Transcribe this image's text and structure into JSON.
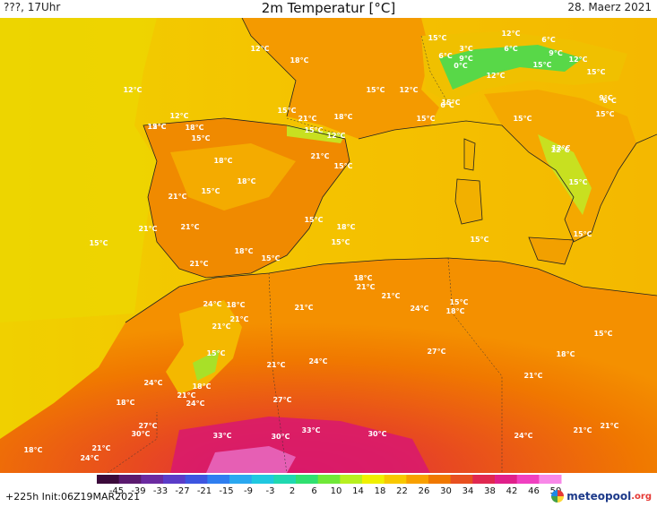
{
  "header": {
    "left": "???, 17Uhr",
    "title": "2m Temperatur [°C]",
    "date": "28. Maerz 2021"
  },
  "footer": {
    "run": "+225h  Init:06Z19MAR2021",
    "logo_main": "meteopool",
    "logo_tld": ".org"
  },
  "colorbar": {
    "ticks": [
      "-45",
      "-39",
      "-33",
      "-27",
      "-21",
      "-15",
      "-9",
      "-3",
      "2",
      "6",
      "10",
      "14",
      "18",
      "22",
      "26",
      "30",
      "34",
      "38",
      "42",
      "46",
      "50"
    ],
    "colors": [
      "#3b0a3a",
      "#5b1a6e",
      "#6b2aa0",
      "#5a3cc8",
      "#3d55e0",
      "#2f7ef0",
      "#2aa8f0",
      "#20c8e0",
      "#20d8b0",
      "#30e070",
      "#70e838",
      "#b8f020",
      "#f0f000",
      "#f8c800",
      "#f8a000",
      "#f07800",
      "#e85020",
      "#e02850",
      "#e0208a",
      "#f040c0",
      "#f888e8"
    ]
  },
  "map_labels": [
    "12°C",
    "12°C",
    "18°C",
    "12°C",
    "12°C",
    "15°C",
    "18°C",
    "15°C",
    "18°C",
    "18°C",
    "15°C",
    "21°C",
    "21°C",
    "21°C",
    "15°C",
    "21°C",
    "15°C",
    "21°C",
    "18°C",
    "15°C",
    "12°C",
    "15°C",
    "21°C",
    "18°C",
    "15°C",
    "18°C",
    "15°C",
    "15°C",
    "15°C",
    "15°C",
    "12°C",
    "6°C",
    "3°C",
    "0°C",
    "12°C",
    "6°C",
    "9°C",
    "12°C",
    "6°C",
    "9°C",
    "12°C",
    "15°C",
    "15°C",
    "15°C",
    "15°C",
    "6°C",
    "15°C",
    "15°C",
    "12°C",
    "15°C",
    "9°C",
    "6°C",
    "15°C",
    "15°C",
    "12°C",
    "18°C",
    "21°C",
    "21°C",
    "24°C",
    "15°C",
    "18°C",
    "24°C",
    "18°C",
    "21°C",
    "21°C",
    "15°C",
    "21°C",
    "24°C",
    "27°C",
    "15°C",
    "18°C",
    "21°C",
    "24°C",
    "18°C",
    "21°C",
    "24°C",
    "18°C",
    "27°C",
    "30°C",
    "27°C",
    "33°C",
    "30°C",
    "33°C",
    "30°C",
    "24°C",
    "21°C",
    "21°C",
    "18°C",
    "21°C",
    "24°C",
    "21°C"
  ]
}
